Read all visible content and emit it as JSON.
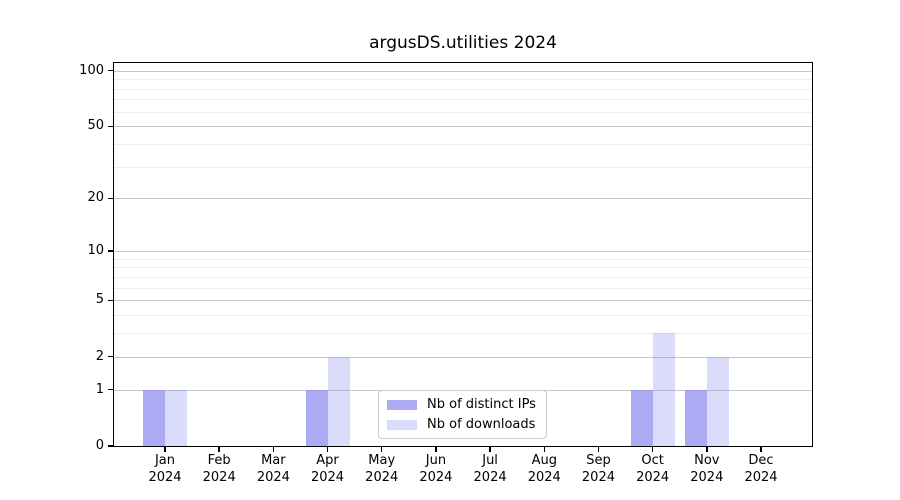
{
  "title": "argusDS.utilities 2024",
  "chart_data": {
    "type": "bar",
    "title": "argusDS.utilities 2024",
    "xlabel": "",
    "ylabel": "",
    "yscale": "log1p",
    "ylim": [
      0,
      110
    ],
    "grid": true,
    "legend_position": "bottom-center",
    "y_major_ticks": [
      0,
      1,
      2,
      5,
      10,
      20,
      50,
      100
    ],
    "y_minor_ticks": [
      3,
      4,
      6,
      7,
      8,
      9,
      30,
      40,
      60,
      70,
      80,
      90
    ],
    "categories": [
      {
        "month": "Jan",
        "year": "2024"
      },
      {
        "month": "Feb",
        "year": "2024"
      },
      {
        "month": "Mar",
        "year": "2024"
      },
      {
        "month": "Apr",
        "year": "2024"
      },
      {
        "month": "May",
        "year": "2024"
      },
      {
        "month": "Jun",
        "year": "2024"
      },
      {
        "month": "Jul",
        "year": "2024"
      },
      {
        "month": "Aug",
        "year": "2024"
      },
      {
        "month": "Sep",
        "year": "2024"
      },
      {
        "month": "Oct",
        "year": "2024"
      },
      {
        "month": "Nov",
        "year": "2024"
      },
      {
        "month": "Dec",
        "year": "2024"
      }
    ],
    "series": [
      {
        "name": "Nb of distinct IPs",
        "color": "rgba(136,136,238,0.7)",
        "values": [
          1,
          0,
          0,
          1,
          0,
          0,
          0,
          0,
          0,
          1,
          1,
          0
        ]
      },
      {
        "name": "Nb of downloads",
        "color": "rgba(136,136,238,0.3)",
        "values": [
          1,
          0,
          0,
          2,
          0,
          0,
          0,
          0,
          0,
          3,
          2,
          0
        ]
      }
    ]
  },
  "style": {
    "bar_base_color": "#8888ee",
    "grid_major_color": "#c6c6c6",
    "grid_minor_color": "#ededed",
    "axis_color": "#000000",
    "background_color": "#ffffff"
  }
}
